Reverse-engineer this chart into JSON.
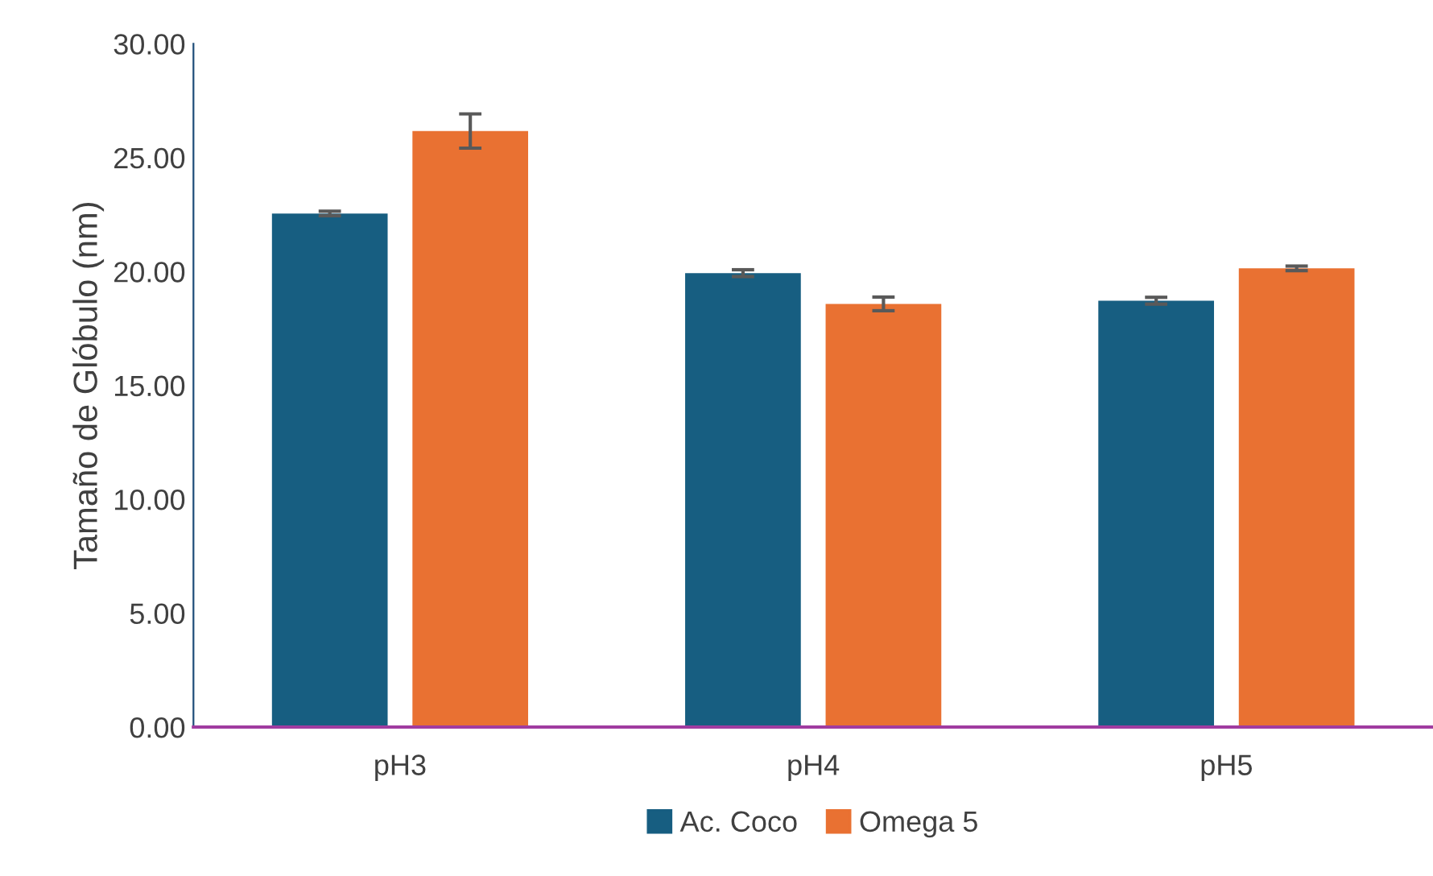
{
  "chart_data": {
    "type": "bar",
    "ylabel": "Tamaño de Glóbulo (nm)",
    "categories": [
      "pH3",
      "pH4",
      "pH5"
    ],
    "series": [
      {
        "name": "Ac. Coco",
        "color": "#175e81",
        "values": [
          22.55,
          19.93,
          18.72
        ],
        "errors": [
          0.1,
          0.15,
          0.15
        ]
      },
      {
        "name": "Omega 5",
        "color": "#e97132",
        "values": [
          26.17,
          18.58,
          20.14
        ],
        "errors": [
          0.75,
          0.3,
          0.1
        ]
      }
    ],
    "ylim": [
      0,
      30
    ],
    "yticks": [
      {
        "value": 0,
        "label": "0.00"
      },
      {
        "value": 5,
        "label": "5.00"
      },
      {
        "value": 10,
        "label": "10.00"
      },
      {
        "value": 15,
        "label": "15.00"
      },
      {
        "value": 20,
        "label": "20.00"
      },
      {
        "value": 25,
        "label": "25.00"
      },
      {
        "value": 30,
        "label": "30.00"
      }
    ],
    "grid": false,
    "legend": "bottom"
  }
}
